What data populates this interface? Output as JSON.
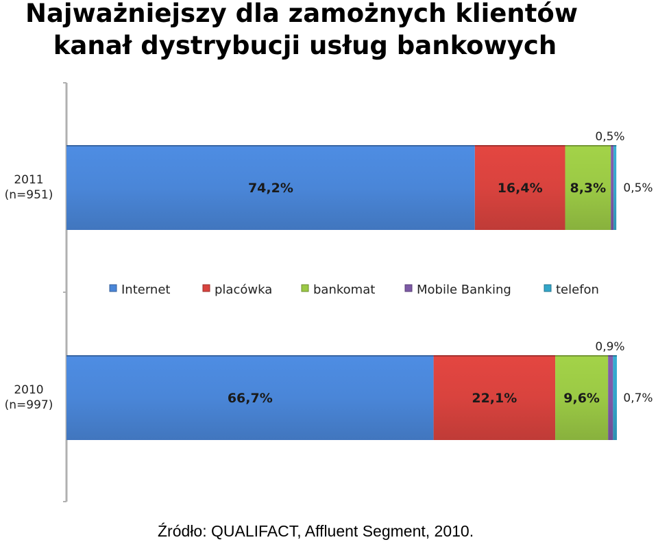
{
  "title": {
    "line1": "Najważniejszy dla zamożnych klientów",
    "line2": "kanał dystrybucji usług bankowych"
  },
  "source": "Źródło: QUALIFACT, Affluent Segment, 2010.",
  "chart_data": {
    "type": "bar",
    "orientation": "horizontal",
    "stacked": true,
    "xlim": [
      0,
      100
    ],
    "categories": [
      {
        "label": "2011",
        "sublabel": "(n=951)"
      },
      {
        "label": "2010",
        "sublabel": "(n=997)"
      }
    ],
    "series": [
      {
        "name": "Internet",
        "color": "#4a86d8",
        "values": [
          74.2,
          66.7
        ],
        "labels": [
          "74,2%",
          "66,7%"
        ]
      },
      {
        "name": "placówka",
        "color": "#d9433e",
        "values": [
          16.4,
          22.1
        ],
        "labels": [
          "16,4%",
          "22,1%"
        ]
      },
      {
        "name": "bankomat",
        "color": "#9bc945",
        "values": [
          8.3,
          9.6
        ],
        "labels": [
          "8,3%",
          "9,6%"
        ]
      },
      {
        "name": "Mobile Banking",
        "color": "#7d5aa6",
        "values": [
          0.5,
          0.9
        ],
        "labels": [
          "0,5%",
          "0,9%"
        ]
      },
      {
        "name": "telefon",
        "color": "#33a6c9",
        "values": [
          0.5,
          0.7
        ],
        "labels": [
          "0,5%",
          "0,7%"
        ]
      }
    ],
    "legend_position": "between bars"
  }
}
